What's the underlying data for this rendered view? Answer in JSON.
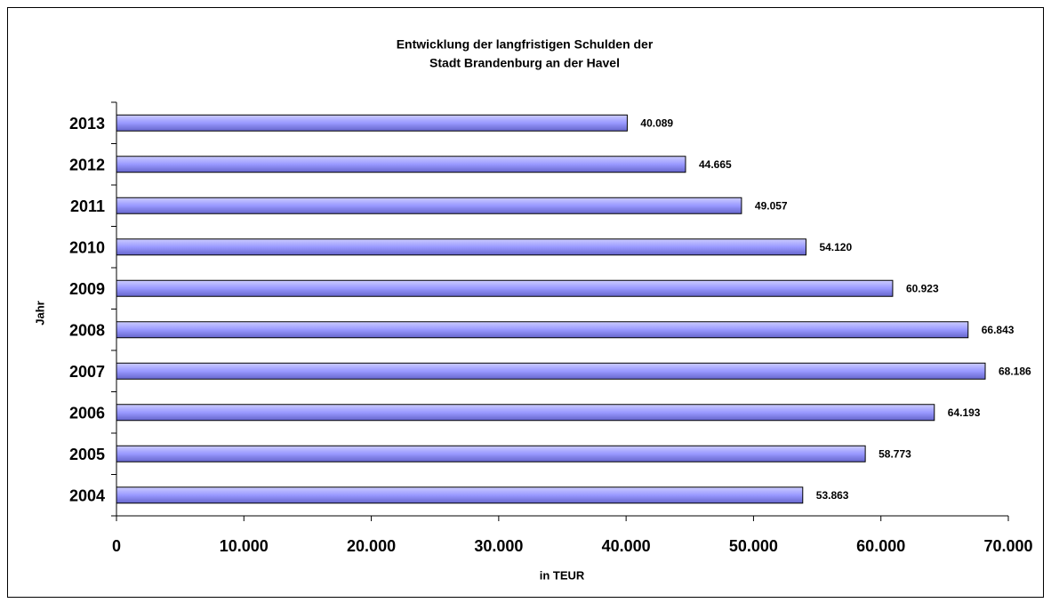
{
  "chart_data": {
    "type": "barh",
    "title": [
      "Entwicklung der langfristigen Schulden der",
      "Stadt Brandenburg an der Havel"
    ],
    "xlabel": "in TEUR",
    "ylabel": "Jahr",
    "categories": [
      "2004",
      "2005",
      "2006",
      "2007",
      "2008",
      "2009",
      "2010",
      "2011",
      "2012",
      "2013"
    ],
    "values": [
      53863,
      58773,
      64193,
      68186,
      66843,
      60923,
      54120,
      49057,
      44665,
      40089
    ],
    "value_labels": [
      "53.863",
      "58.773",
      "64.193",
      "68.186",
      "66.843",
      "60.923",
      "54.120",
      "49.057",
      "44.665",
      "40.089"
    ],
    "color": "#9999ff",
    "xlim": [
      0,
      70000
    ],
    "xticks": [
      0,
      {
        "value": 10000,
        "label": "10.000"
      },
      {
        "value": 20000,
        "label": "20.000"
      },
      {
        "value": 30000,
        "label": "30.000"
      },
      {
        "value": 40000,
        "label": "40.000"
      },
      {
        "value": 50000,
        "label": "50.000"
      },
      {
        "value": 60000,
        "label": "60.000"
      },
      {
        "value": 70000,
        "label": "70.000"
      }
    ],
    "grid": false
  }
}
